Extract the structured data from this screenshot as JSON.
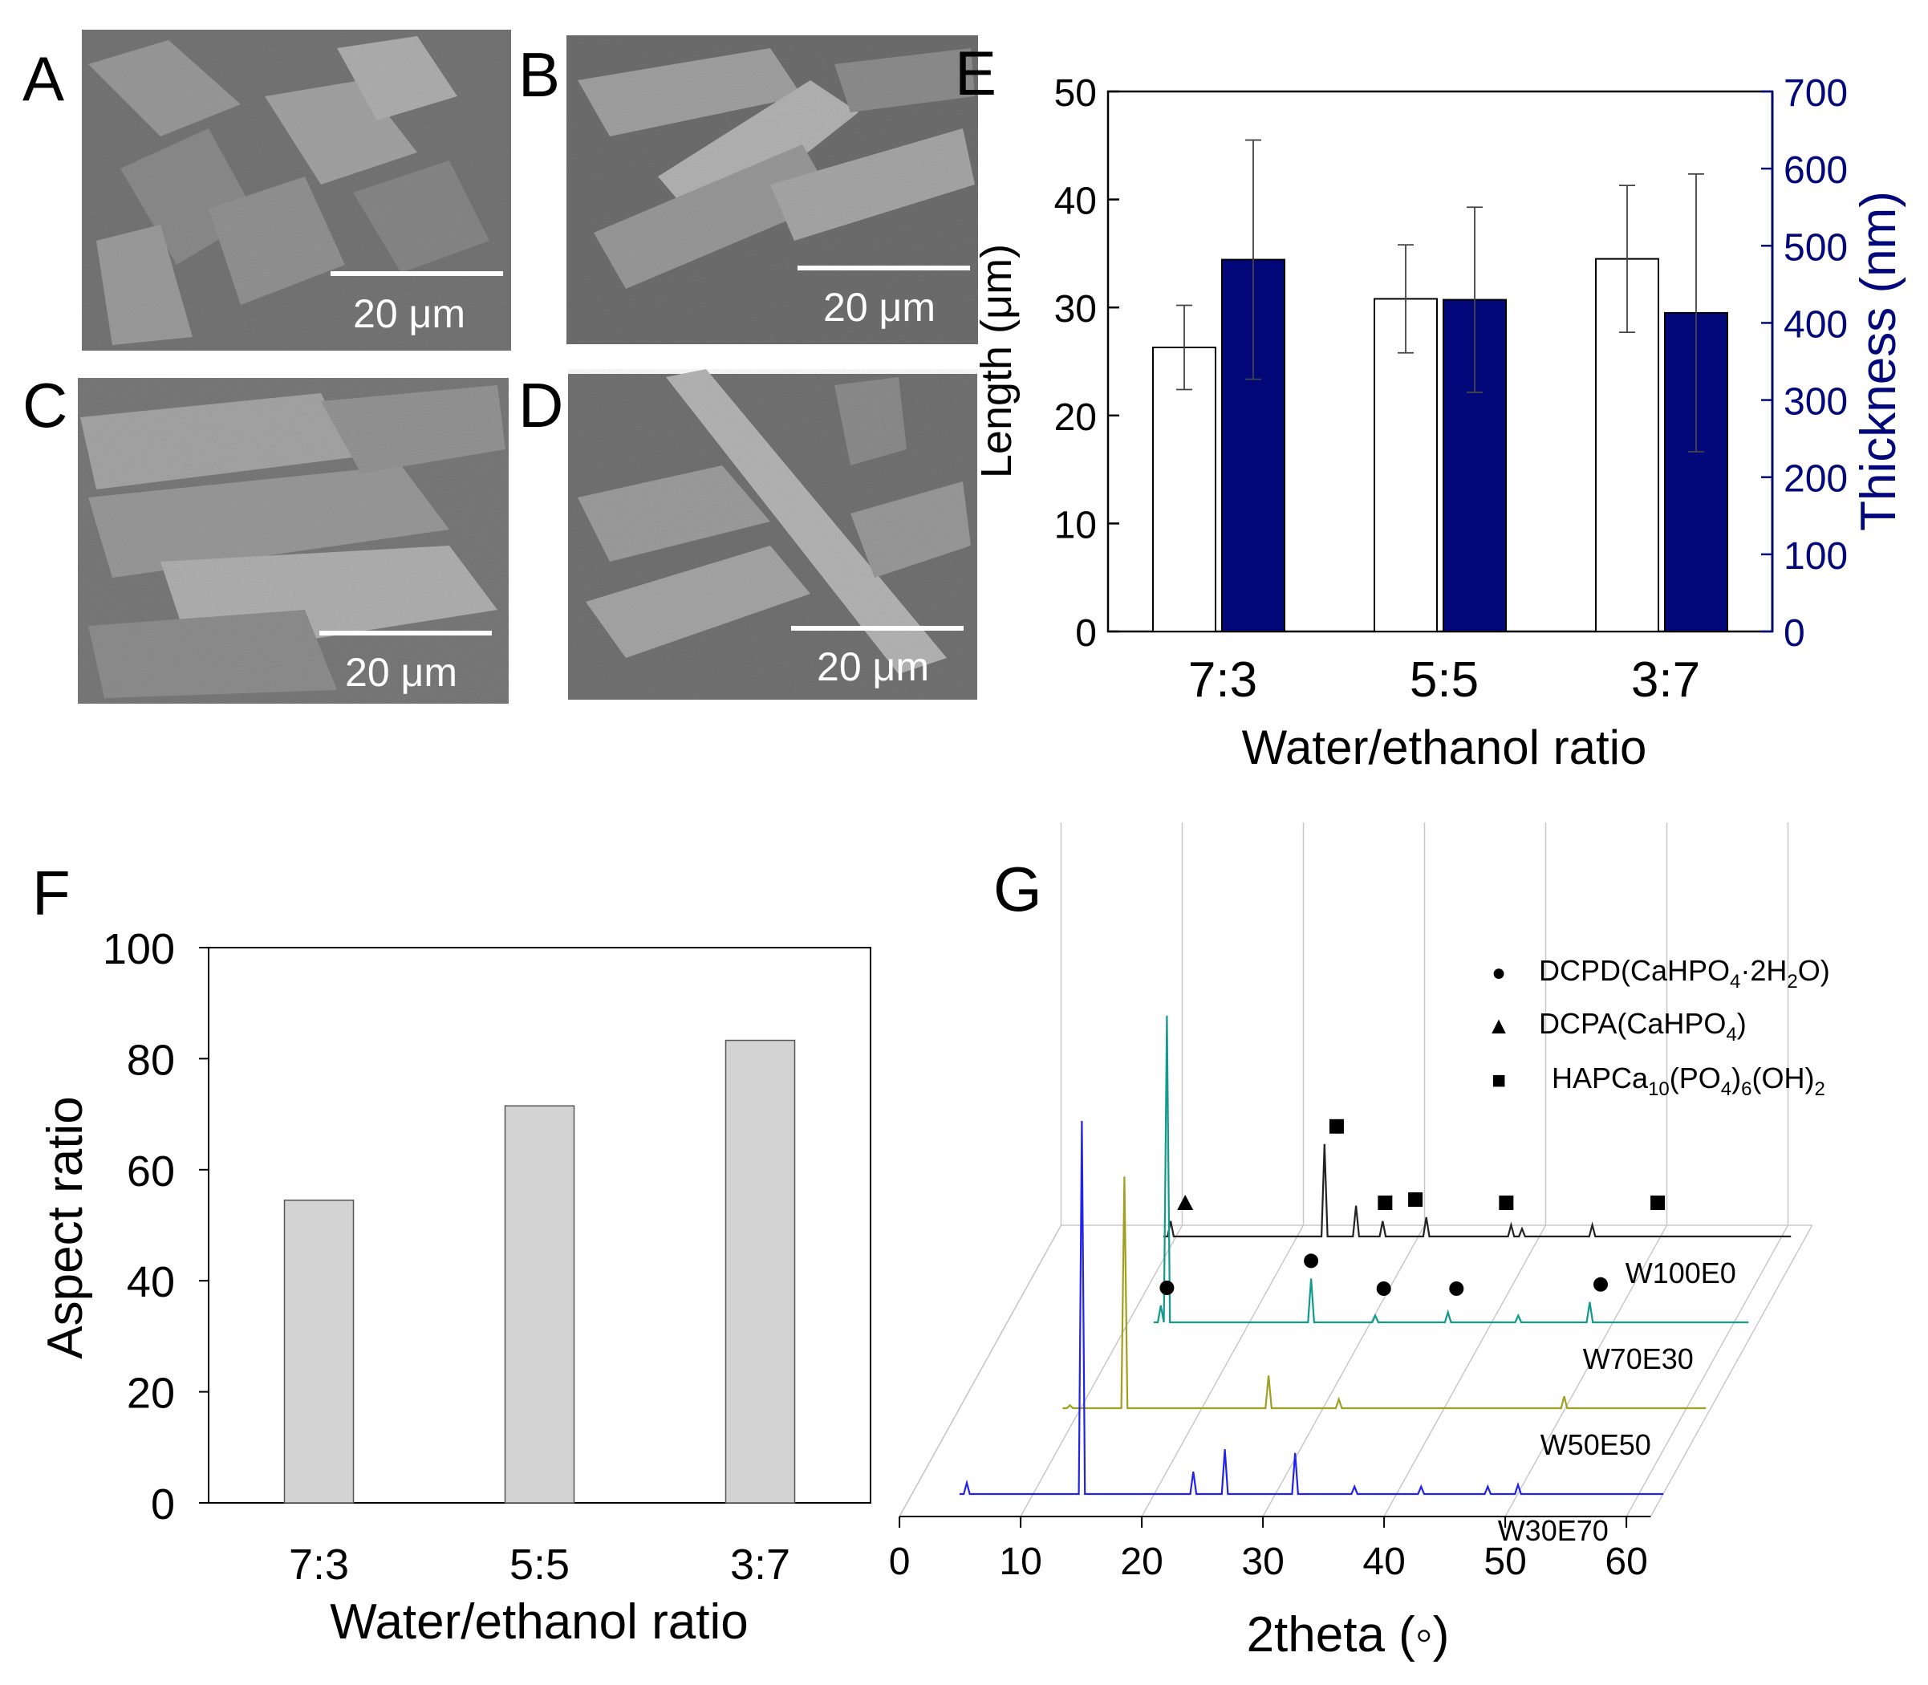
{
  "panels": {
    "A": {
      "letter": "A",
      "scale_bar": "20 μm"
    },
    "B": {
      "letter": "B",
      "scale_bar": "20 μm"
    },
    "C": {
      "letter": "C",
      "scale_bar": "20 μm"
    },
    "D": {
      "letter": "D",
      "scale_bar": "20 μm"
    },
    "E": {
      "letter": "E"
    },
    "F": {
      "letter": "F"
    },
    "G": {
      "letter": "G"
    }
  },
  "colors": {
    "navy": "#02077a",
    "grey_bar": "#d3d3d3",
    "sem_bg": "#7a7a7a"
  },
  "chart_data": [
    {
      "id": "E",
      "type": "bar",
      "categories": [
        "7:3",
        "5:5",
        "3:7"
      ],
      "xlabel": "Water/ethanol ratio",
      "ylabel": "Length (μm)",
      "y2label": "Thickness (nm)",
      "ylim": [
        0,
        50
      ],
      "y2lim": [
        0,
        700
      ],
      "yticks": [
        "0",
        "10",
        "20",
        "30",
        "40",
        "50"
      ],
      "y2ticks": [
        "0",
        "100",
        "200",
        "300",
        "400",
        "500",
        "600",
        "700"
      ],
      "series": [
        {
          "name": "Length",
          "axis": "left",
          "color": "#ffffff",
          "values": [
            26.3,
            30.8,
            34.5
          ],
          "errors": [
            3.9,
            5.0,
            6.8
          ]
        },
        {
          "name": "Thickness",
          "axis": "right",
          "color": "#02077a",
          "values": [
            482,
            430,
            413
          ],
          "errors": [
            155,
            120,
            180
          ]
        }
      ]
    },
    {
      "id": "F",
      "type": "bar",
      "categories": [
        "7:3",
        "5:5",
        "3:7"
      ],
      "xlabel": "Water/ethanol ratio",
      "ylabel": "Aspect ratio",
      "ylim": [
        0,
        100
      ],
      "yticks": [
        "0",
        "20",
        "40",
        "60",
        "80",
        "100"
      ],
      "series": [
        {
          "name": "Aspect ratio",
          "values": [
            54.5,
            71.5,
            83.3
          ]
        }
      ]
    },
    {
      "id": "G",
      "type": "line",
      "xlabel": "2theta (◦)",
      "xlim": [
        0,
        60
      ],
      "xticks": [
        "0",
        "10",
        "20",
        "30",
        "40",
        "50",
        "60"
      ],
      "legend": [
        {
          "symbol": "●",
          "name": "DCPD",
          "formula_parts": [
            "(CaHPO",
            "4",
            "·2H",
            "2",
            "O)"
          ]
        },
        {
          "symbol": "▲",
          "name": "DCPA",
          "formula_parts": [
            "(CaHPO",
            "4",
            ")"
          ]
        },
        {
          "symbol": "■",
          "name": "HAP",
          "formula_parts": [
            "Ca",
            "10",
            "(PO",
            "4",
            ")",
            "6",
            "(OH)",
            "2"
          ]
        }
      ],
      "series": [
        {
          "name": "W30E70",
          "color": "#2222ee",
          "peaks": [
            {
              "x": 4.5,
              "y": 0.03
            },
            {
              "x": 14,
              "y": 1.0
            },
            {
              "x": 23.2,
              "y": 0.06
            },
            {
              "x": 25.8,
              "y": 0.12
            },
            {
              "x": 31.6,
              "y": 0.11
            },
            {
              "x": 36.5,
              "y": 0.02
            },
            {
              "x": 42.0,
              "y": 0.02
            },
            {
              "x": 47.5,
              "y": 0.02
            },
            {
              "x": 50.0,
              "y": 0.025
            }
          ]
        },
        {
          "name": "W50E50",
          "color": "#a0a020",
          "peaks": [
            {
              "x": 9.5,
              "y": 0.01
            },
            {
              "x": 14,
              "y": 0.78
            },
            {
              "x": 25.9,
              "y": 0.11
            },
            {
              "x": 31.7,
              "y": 0.03
            },
            {
              "x": 50.3,
              "y": 0.04
            }
          ]
        },
        {
          "name": "W70E30",
          "color": "#129a8a",
          "peaks": [
            {
              "x": 13.5,
              "y": 0.05
            },
            {
              "x": 14,
              "y": 0.91
            },
            {
              "x": 25.9,
              "y": 0.13
            },
            {
              "x": 31.2,
              "y": 0.02
            },
            {
              "x": 37.2,
              "y": 0.03
            },
            {
              "x": 43.0,
              "y": 0.02
            },
            {
              "x": 48.9,
              "y": 0.06
            }
          ],
          "markers": [
            {
              "x": 14,
              "symbol": "●"
            },
            {
              "x": 25.9,
              "symbol": "●"
            },
            {
              "x": 31.9,
              "symbol": "●"
            },
            {
              "x": 37.9,
              "symbol": "●"
            },
            {
              "x": 49.8,
              "symbol": "●"
            }
          ]
        },
        {
          "name": "W100E0",
          "color": "#222222",
          "peaks": [
            {
              "x": 10.8,
              "y": 0.04
            },
            {
              "x": 23.5,
              "y": 0.24
            },
            {
              "x": 26.1,
              "y": 0.08
            },
            {
              "x": 28.3,
              "y": 0.04
            },
            {
              "x": 31.9,
              "y": 0.05
            },
            {
              "x": 38.9,
              "y": 0.03
            },
            {
              "x": 39.8,
              "y": 0.02
            },
            {
              "x": 45.6,
              "y": 0.03
            }
          ],
          "markers": [
            {
              "x": 12.0,
              "symbol": "▲"
            },
            {
              "x": 24.5,
              "symbol": "■"
            },
            {
              "x": 28.5,
              "symbol": "■"
            },
            {
              "x": 31.0,
              "symbol": "■"
            },
            {
              "x": 38.5,
              "symbol": "■"
            },
            {
              "x": 51.0,
              "symbol": "■"
            }
          ]
        }
      ]
    }
  ]
}
